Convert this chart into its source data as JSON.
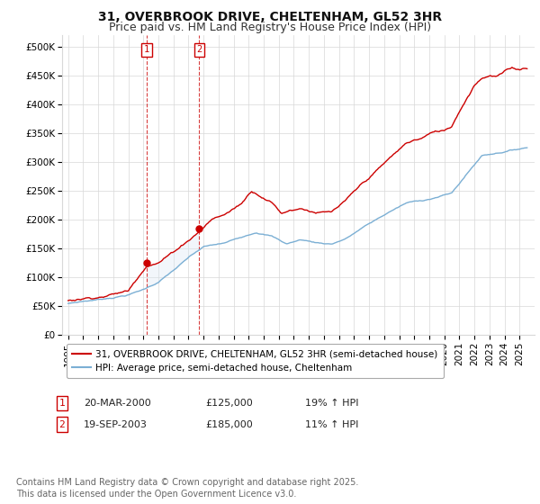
{
  "title": "31, OVERBROOK DRIVE, CHELTENHAM, GL52 3HR",
  "subtitle": "Price paid vs. HM Land Registry's House Price Index (HPI)",
  "ylim": [
    0,
    520000
  ],
  "ytick_labels": [
    "£0",
    "£50K",
    "£100K",
    "£150K",
    "£200K",
    "£250K",
    "£300K",
    "£350K",
    "£400K",
    "£450K",
    "£500K"
  ],
  "line_color_red": "#cc0000",
  "line_color_blue": "#7bafd4",
  "shaded_blue": "#dae8f4",
  "background_color": "#ffffff",
  "grid_color": "#d8d8d8",
  "purchase1_date": 2000.22,
  "purchase1_price": 125000,
  "purchase2_date": 2003.72,
  "purchase2_price": 185000,
  "legend_line1": "31, OVERBROOK DRIVE, CHELTENHAM, GL52 3HR (semi-detached house)",
  "legend_line2": "HPI: Average price, semi-detached house, Cheltenham",
  "footnote": "Contains HM Land Registry data © Crown copyright and database right 2025.\nThis data is licensed under the Open Government Licence v3.0.",
  "title_fontsize": 10,
  "subtitle_fontsize": 9,
  "tick_fontsize": 7.5,
  "legend_fontsize": 7.5,
  "annotation_fontsize": 8,
  "footnote_fontsize": 7
}
